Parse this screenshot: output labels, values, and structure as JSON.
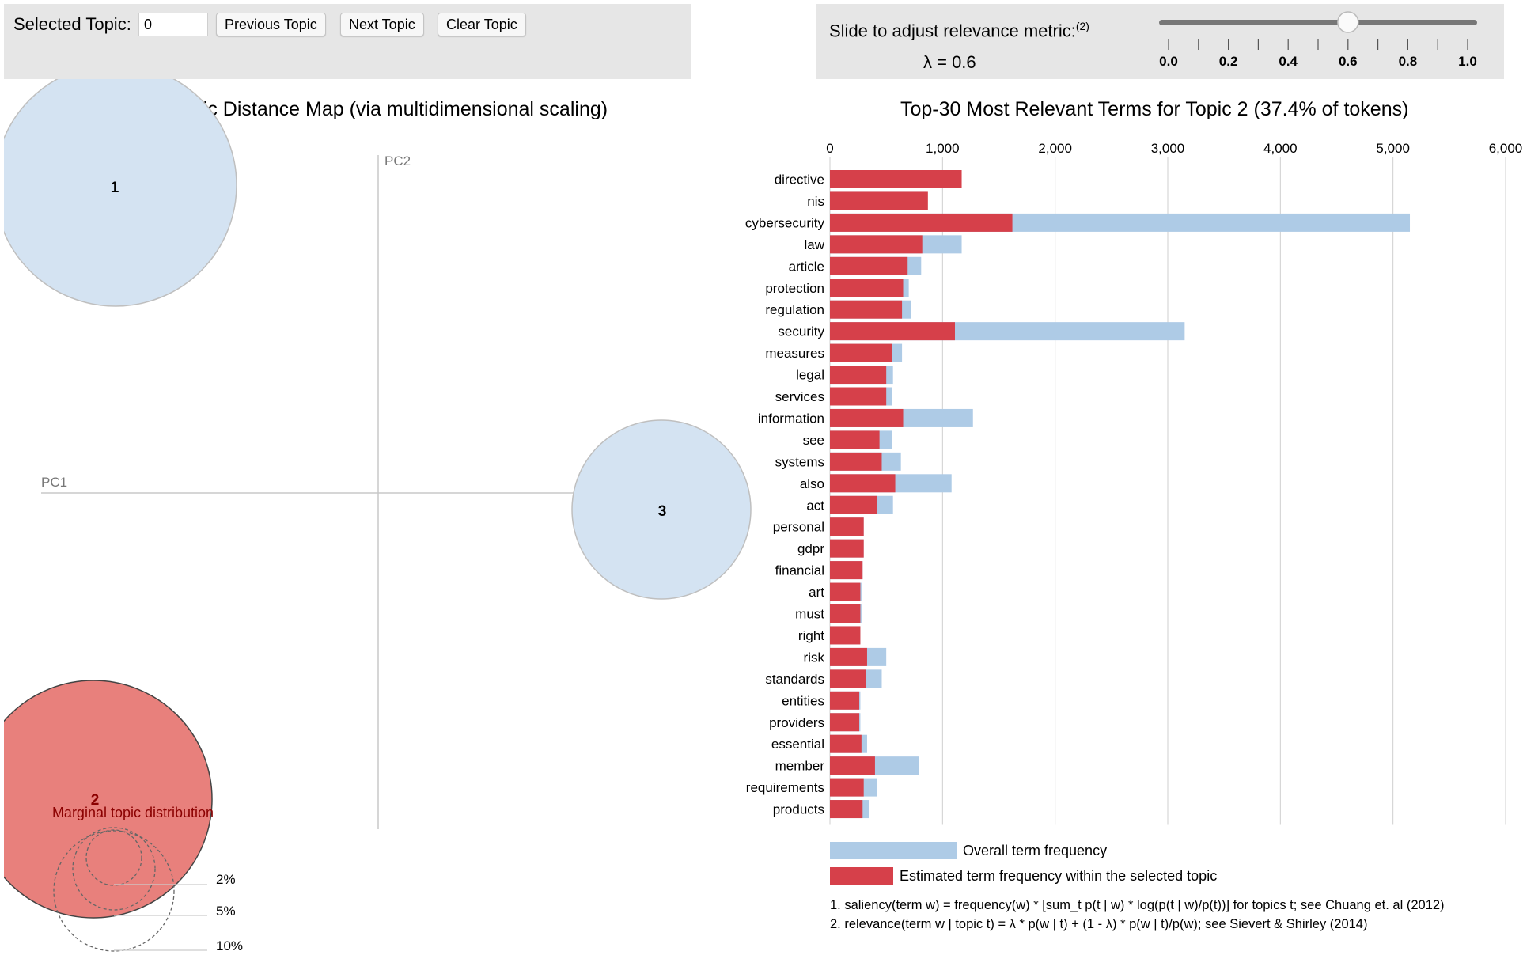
{
  "controls": {
    "selected_topic_label": "Selected Topic:",
    "selected_topic_value": "0",
    "previous_label": "Previous Topic",
    "next_label": "Next Topic",
    "clear_label": "Clear Topic"
  },
  "slider": {
    "label": "Slide to adjust relevance metric:",
    "footnote": "(2)",
    "lambda_text": "λ = 0.6",
    "value": 0.6,
    "ticks": [
      "0.0",
      "0.2",
      "0.4",
      "0.6",
      "0.8",
      "1.0"
    ]
  },
  "map": {
    "title": "Intertopic Distance Map (via multidimensional scaling)",
    "pc1": "PC1",
    "pc2": "PC2",
    "marginal_label": "Marginal topic distribution",
    "legend_sizes": [
      "2%",
      "5%",
      "10%"
    ],
    "topics": [
      {
        "id": "1",
        "selected": false
      },
      {
        "id": "2",
        "selected": true
      },
      {
        "id": "3",
        "selected": false
      }
    ],
    "colors": {
      "unselected": "#d4e3f2",
      "selected": "#e8807c",
      "number_selected": "#8b0000"
    }
  },
  "chart_data": {
    "type": "bar",
    "title": "Top-30 Most Relevant Terms for Topic 2 (37.4% of tokens)",
    "xlim": [
      0,
      6000
    ],
    "x_ticks": [
      "0",
      "1,000",
      "2,000",
      "3,000",
      "4,000",
      "5,000",
      "6,000"
    ],
    "categories": [
      "directive",
      "nis",
      "cybersecurity",
      "law",
      "article",
      "protection",
      "regulation",
      "security",
      "measures",
      "legal",
      "services",
      "information",
      "see",
      "systems",
      "also",
      "act",
      "personal",
      "gdpr",
      "financial",
      "art",
      "must",
      "right",
      "risk",
      "standards",
      "entities",
      "providers",
      "essential",
      "member",
      "requirements",
      "products"
    ],
    "series": [
      {
        "name": "Overall term frequency",
        "color": "#aecbe6",
        "values": [
          1150,
          850,
          5150,
          1170,
          810,
          700,
          720,
          3150,
          640,
          560,
          550,
          1270,
          550,
          630,
          1080,
          560,
          300,
          300,
          290,
          280,
          280,
          270,
          500,
          460,
          270,
          270,
          330,
          790,
          420,
          350
        ]
      },
      {
        "name": "Estimated term frequency within the selected topic",
        "color": "#d6404a",
        "values": [
          1170,
          870,
          1620,
          820,
          690,
          650,
          640,
          1110,
          550,
          500,
          500,
          650,
          440,
          460,
          580,
          420,
          300,
          300,
          290,
          270,
          270,
          270,
          330,
          320,
          260,
          260,
          280,
          400,
          300,
          290
        ]
      }
    ],
    "legend": [
      "Overall term frequency",
      "Estimated term frequency within the selected topic"
    ]
  },
  "footnotes": {
    "note1": "1. saliency(term w) = frequency(w) * [sum_t p(t | w) * log(p(t | w)/p(t))] for topics t; see Chuang et. al (2012)",
    "note2": "2. relevance(term w | topic t) = λ * p(w | t) + (1 - λ) * p(w | t)/p(w); see Sievert & Shirley (2014)"
  }
}
